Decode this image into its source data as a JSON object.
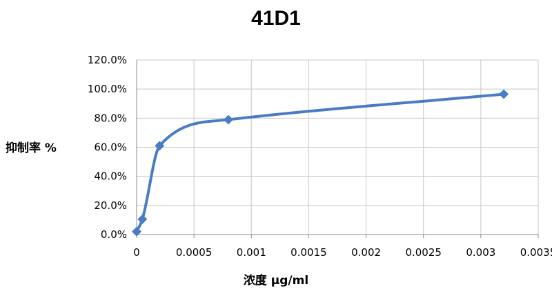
{
  "chart_data": {
    "type": "line",
    "title": "41D1",
    "xlabel": "浓度 μg/ml",
    "ylabel": "抑制率 %",
    "xlim": [
      0,
      0.0035
    ],
    "ylim": [
      0,
      1.2
    ],
    "x_ticks": [
      "0",
      "0.0005",
      "0.001",
      "0.0015",
      "0.002",
      "0.0025",
      "0.003",
      "0.0035"
    ],
    "y_ticks": [
      "0.0%",
      "20.0%",
      "40.0%",
      "60.0%",
      "80.0%",
      "100.0%",
      "120.0%"
    ],
    "grid": true,
    "series": [
      {
        "x": [
          0,
          5e-05,
          0.0002,
          0.0008,
          0.0032
        ],
        "y": [
          0.02,
          0.105,
          0.61,
          0.79,
          0.965
        ],
        "color": "#4a7cc4",
        "marker": "diamond",
        "smooth": true
      }
    ]
  }
}
